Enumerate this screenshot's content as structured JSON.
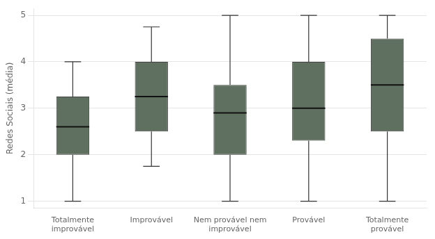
{
  "chart_data": {
    "type": "box",
    "categories": [
      "Totalmente\nimprovável",
      "Improvável",
      "Nem provável nem\nimprovável",
      "Provável",
      "Totalmente\nprovável"
    ],
    "boxes": [
      {
        "whislo": 1.0,
        "q1": 2.0,
        "med": 2.6,
        "q3": 3.25,
        "whishi": 4.0
      },
      {
        "whislo": 1.75,
        "q1": 2.5,
        "med": 3.25,
        "q3": 4.0,
        "whishi": 4.75
      },
      {
        "whislo": 1.0,
        "q1": 2.0,
        "med": 2.9,
        "q3": 3.5,
        "whishi": 5.0
      },
      {
        "whislo": 1.0,
        "q1": 2.3,
        "med": 3.0,
        "q3": 4.0,
        "whishi": 5.0
      },
      {
        "whislo": 1.0,
        "q1": 2.5,
        "med": 3.5,
        "q3": 4.5,
        "whishi": 5.0
      }
    ],
    "ylabel": "Redes Sociais (média)",
    "ylim": [
      0.85,
      5.15
    ],
    "yticks": [
      1,
      2,
      3,
      4,
      5
    ],
    "grid": true,
    "color": "#607060"
  }
}
